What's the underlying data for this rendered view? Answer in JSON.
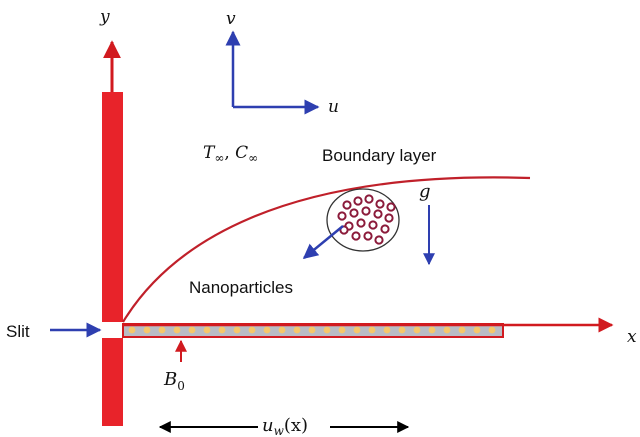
{
  "labels": {
    "y_axis": "y",
    "x_axis": "x",
    "v_axis": "v",
    "u_axis": "u",
    "T_sym": "T",
    "T_sub": "∞",
    "sep": ", ",
    "C_sym": "C",
    "C_sub": "∞",
    "boundary_layer": "Boundary layer",
    "g": "g",
    "nanoparticles": "Nanoparticles",
    "slit": "Slit",
    "B_sym": "B",
    "B_sub": "0",
    "uw_sym": "u",
    "uw_sub": "w",
    "uw_arg": "(x)"
  },
  "colors": {
    "wall": "#e8232a",
    "axis_red": "#d11a1f",
    "arrow_blue": "#2e3fb0",
    "curve": "#c0202a",
    "sheet_fill": "#b9bcc4",
    "sheet_dot": "#f5c76a",
    "particle": "#8b1a3a",
    "text": "#111111"
  },
  "icons": {
    "nanoparticle_cluster": "nanoparticle-cluster-icon"
  }
}
